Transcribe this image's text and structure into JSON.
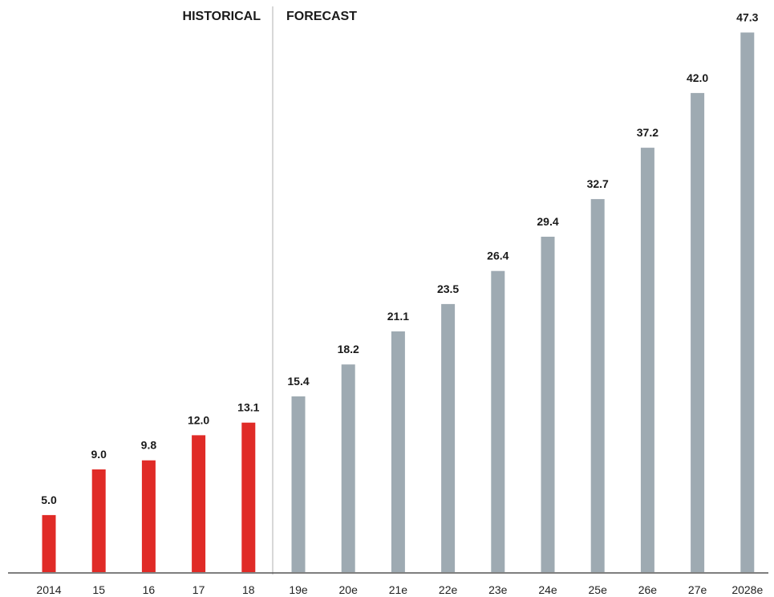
{
  "chart_data": {
    "type": "bar",
    "categories": [
      "2014",
      "15",
      "16",
      "17",
      "18",
      "19e",
      "20e",
      "21e",
      "22e",
      "23e",
      "24e",
      "25e",
      "26e",
      "27e",
      "2028e"
    ],
    "values": [
      5.0,
      9.0,
      9.8,
      12.0,
      13.1,
      15.4,
      18.2,
      21.1,
      23.5,
      26.4,
      29.4,
      32.7,
      37.2,
      42.0,
      47.3
    ],
    "value_labels": [
      "5.0",
      "9.0",
      "9.8",
      "12.0",
      "13.1",
      "15.4",
      "18.2",
      "21.1",
      "23.5",
      "26.4",
      "29.4",
      "32.7",
      "37.2",
      "42.0",
      "47.3"
    ],
    "segments": [
      {
        "label": "HISTORICAL",
        "categories": [
          "2014",
          "15",
          "16",
          "17",
          "18"
        ],
        "color": "#e02b27"
      },
      {
        "label": "FORECAST",
        "categories": [
          "19e",
          "20e",
          "21e",
          "22e",
          "23e",
          "24e",
          "25e",
          "26e",
          "27e",
          "2028e"
        ],
        "color": "#9eaab2"
      }
    ],
    "ylim": [
      0,
      50
    ],
    "grid": false,
    "xlabel": "",
    "ylabel": ""
  },
  "colors": {
    "historical": "#e02b27",
    "forecast": "#9eaab2",
    "axis": "#555555",
    "divider": "#b0b0b0"
  }
}
